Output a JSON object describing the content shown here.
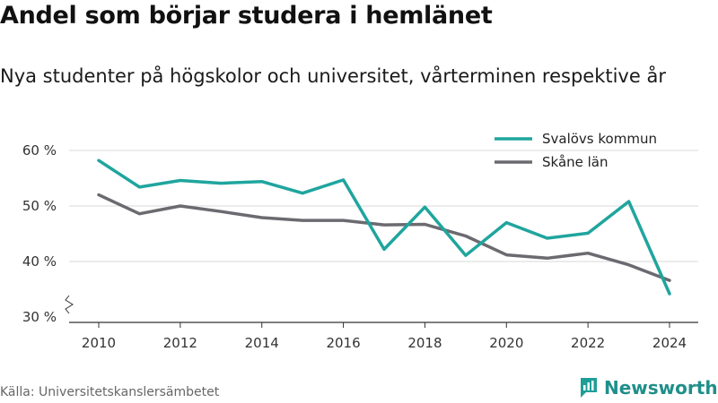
{
  "title": "Andel som börjar studera i hemlänet",
  "subtitle": "Nya studenter på högskolor och universitet, vårterminen respektive år",
  "source": "Källa: Universitetskanslersämbetet",
  "brand": {
    "name": "Newsworthy",
    "color": "#1f9e98"
  },
  "chart_data": {
    "type": "line",
    "x": [
      2010,
      2011,
      2012,
      2013,
      2014,
      2015,
      2016,
      2017,
      2018,
      2019,
      2020,
      2021,
      2022,
      2023,
      2024
    ],
    "x_ticks": [
      2010,
      2012,
      2014,
      2016,
      2018,
      2020,
      2022,
      2024
    ],
    "y_ticks": [
      {
        "value": 30,
        "label": "30 %"
      },
      {
        "value": 40,
        "label": "40 %"
      },
      {
        "value": 50,
        "label": "50 %"
      },
      {
        "value": 60,
        "label": "60 %"
      }
    ],
    "ylim": [
      30,
      62
    ],
    "y_axis_break": true,
    "grid": true,
    "legend_position": "top-right",
    "series": [
      {
        "name": "Svalövs kommun",
        "color": "#1fa59e",
        "values": [
          58.2,
          53.4,
          54.6,
          54.1,
          54.4,
          52.3,
          54.7,
          42.2,
          49.8,
          41.1,
          47.0,
          44.2,
          45.1,
          50.8,
          34.2
        ]
      },
      {
        "name": "Skåne län",
        "color": "#6b6a70",
        "values": [
          52.0,
          48.6,
          50.0,
          49.0,
          47.9,
          47.4,
          47.4,
          46.6,
          46.7,
          44.6,
          41.2,
          40.6,
          41.5,
          39.4,
          36.6
        ]
      }
    ]
  }
}
